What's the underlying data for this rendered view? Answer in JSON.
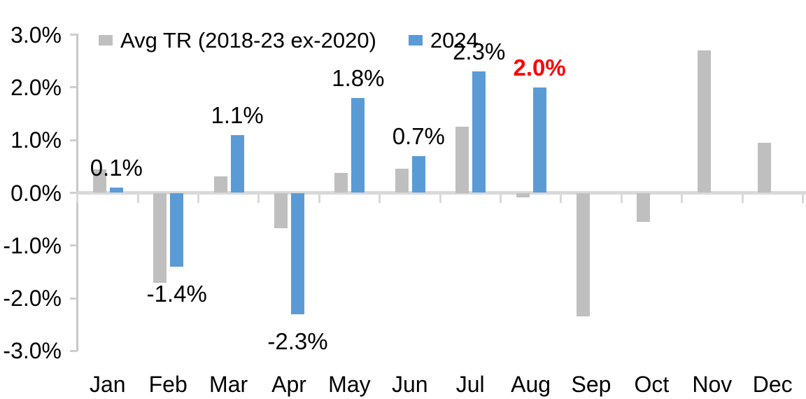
{
  "chart_data": {
    "type": "bar",
    "title": "",
    "categories": [
      "Jan",
      "Feb",
      "Mar",
      "Apr",
      "May",
      "Jun",
      "Jul",
      "Aug",
      "Sep",
      "Oct",
      "Nov",
      "Dec"
    ],
    "series": [
      {
        "name": "Avg TR (2018-23 ex-2020)",
        "color": "#BFBFBF",
        "values": [
          0.44,
          -1.7,
          0.31,
          -0.67,
          0.38,
          0.46,
          1.25,
          -0.08,
          -2.35,
          -0.55,
          2.7,
          0.95
        ]
      },
      {
        "name": "2024",
        "color": "#5B9BD5",
        "values": [
          0.1,
          -1.4,
          1.1,
          -2.3,
          1.8,
          0.7,
          2.3,
          2.0,
          null,
          null,
          null,
          null
        ],
        "data_labels": [
          {
            "text": "0.1%",
            "color": "#000000",
            "bold": false
          },
          {
            "text": "-1.4%",
            "color": "#000000",
            "bold": false
          },
          {
            "text": "1.1%",
            "color": "#000000",
            "bold": false
          },
          {
            "text": "-2.3%",
            "color": "#000000",
            "bold": false
          },
          {
            "text": "1.8%",
            "color": "#000000",
            "bold": false
          },
          {
            "text": "0.7%",
            "color": "#000000",
            "bold": false
          },
          {
            "text": "2.3%",
            "color": "#000000",
            "bold": false
          },
          {
            "text": "2.0%",
            "color": "#FF0000",
            "bold": true
          },
          null,
          null,
          null,
          null
        ]
      }
    ],
    "y_axis": {
      "range": [
        -3,
        3
      ],
      "ticks": [
        {
          "label": "3.0%",
          "value": 3
        },
        {
          "label": "2.0%",
          "value": 2
        },
        {
          "label": "1.0%",
          "value": 1
        },
        {
          "label": "0.0%",
          "value": 0
        },
        {
          "label": "-1.0%",
          "value": -1
        },
        {
          "label": "-2.0%",
          "value": -2
        },
        {
          "label": "-3.0%",
          "value": -3
        }
      ]
    },
    "legend_position": "top",
    "gridlines": "none"
  },
  "colors": {
    "bar_gray": "#BFBFBF",
    "bar_blue": "#5B9BD5",
    "highlight_red": "#FF0000",
    "axis_line": "#D9D9D9",
    "text": "#000000",
    "background": "#FFFFFF"
  }
}
